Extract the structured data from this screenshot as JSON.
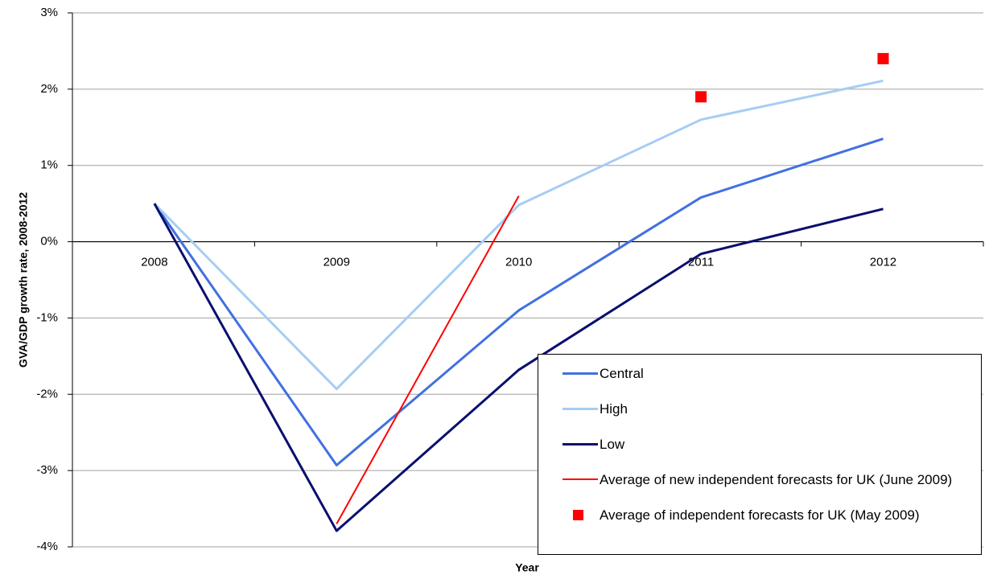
{
  "chart_data": {
    "type": "line",
    "y_label": "GVA/GDP growth rate, 2008-2012",
    "x_label": "Year",
    "categories": [
      "2008",
      "2009",
      "2010",
      "2011",
      "2012"
    ],
    "series": [
      {
        "name": "Central",
        "color": "#4170e0",
        "mark": "line",
        "values": [
          0.5,
          -2.93,
          -0.9,
          0.58,
          1.35
        ]
      },
      {
        "name": "High",
        "color": "#a6cdf4",
        "mark": "line",
        "values": [
          0.5,
          -1.93,
          0.48,
          1.6,
          2.11
        ]
      },
      {
        "name": "Low",
        "color": "#0a0f6e",
        "mark": "line",
        "values": [
          0.5,
          -3.79,
          -1.68,
          -0.16,
          0.43
        ]
      },
      {
        "name": "Average of new independent forecasts for UK (June 2009)",
        "color": "#ff0000",
        "mark": "line",
        "values": [
          null,
          -3.7,
          0.6,
          null,
          null
        ]
      },
      {
        "name": "Average of independent forecasts for UK (May 2009)",
        "color": "#ff0000",
        "mark": "square",
        "values": [
          null,
          null,
          null,
          1.9,
          2.4
        ]
      }
    ],
    "ylim": [
      -4,
      3
    ],
    "yticks": [
      {
        "value": -4,
        "label": "-4%"
      },
      {
        "value": -3,
        "label": "-3%"
      },
      {
        "value": -2,
        "label": "-2%"
      },
      {
        "value": -1,
        "label": "-1%"
      },
      {
        "value": 0,
        "label": "0%"
      },
      {
        "value": 1,
        "label": "1%"
      },
      {
        "value": 2,
        "label": "2%"
      },
      {
        "value": 3,
        "label": "3%"
      }
    ],
    "grid": true
  }
}
